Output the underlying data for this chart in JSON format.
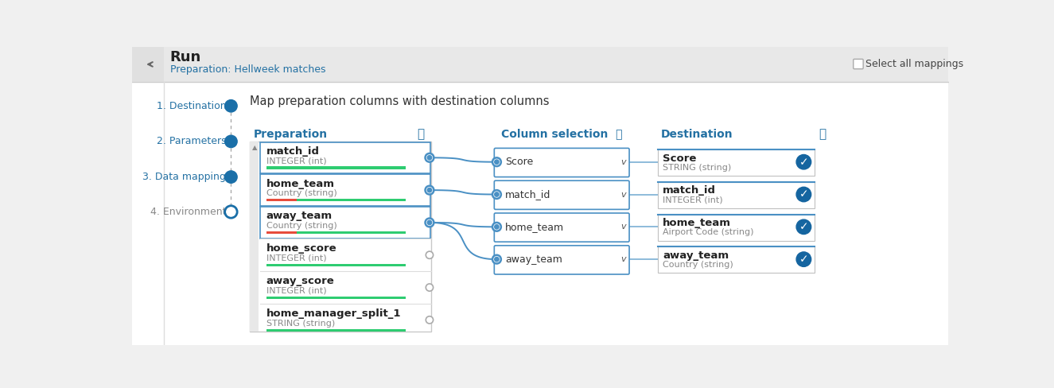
{
  "bg_color": "#f0f0f0",
  "white": "#ffffff",
  "blue_btn": "#1a6fa8",
  "blue_btn2": "#1565a0",
  "green": "#2ecc71",
  "red_bar": "#e74c3c",
  "text_dark": "#333333",
  "text_blue": "#2471a3",
  "text_gray": "#888888",
  "border_blue": "#4a90c4",
  "border_gray": "#cccccc",
  "header_bg": "#e8e8e8",
  "panel_bg": "#f7f7f7",
  "header_title": "Run",
  "header_subtitle": "Preparation: Hellweek matches",
  "select_all_label": "Select all mappings",
  "step_title": "Map preparation columns with destination columns",
  "steps": [
    {
      "num": "1.",
      "label": "Destination",
      "filled": true,
      "active": false
    },
    {
      "num": "2.",
      "label": "Parameters",
      "filled": true,
      "active": false
    },
    {
      "num": "3.",
      "label": "Data mapping",
      "filled": true,
      "active": true
    },
    {
      "num": "4.",
      "label": "Environment",
      "filled": false,
      "active": false
    }
  ],
  "prep_header": "Preparation",
  "col_sel_header": "Column selection",
  "dest_header": "Destination",
  "prep_items": [
    {
      "name": "match_id",
      "type": "INTEGER (int)",
      "bar_red": false,
      "connected": true,
      "highlighted": true
    },
    {
      "name": "home_team",
      "type": "Country (string)",
      "bar_red": true,
      "connected": true,
      "highlighted": true
    },
    {
      "name": "away_team",
      "type": "Country (string)",
      "bar_red": true,
      "connected": true,
      "highlighted": true
    },
    {
      "name": "home_score",
      "type": "INTEGER (int)",
      "bar_red": false,
      "connected": false,
      "highlighted": false
    },
    {
      "name": "away_score",
      "type": "INTEGER (int)",
      "bar_red": false,
      "connected": false,
      "highlighted": false
    },
    {
      "name": "home_manager_split_1",
      "type": "STRING (string)",
      "bar_red": false,
      "connected": false,
      "highlighted": false
    }
  ],
  "col_sel_items": [
    {
      "value": "Score"
    },
    {
      "value": "match_id"
    },
    {
      "value": "home_team"
    },
    {
      "value": "away_team"
    }
  ],
  "dest_items": [
    {
      "name": "Score",
      "type": "STRING (string)"
    },
    {
      "name": "match_id",
      "type": "INTEGER (int)"
    },
    {
      "name": "home_team",
      "type": "Airport Code (string)"
    },
    {
      "name": "away_team",
      "type": "Country (string)"
    }
  ],
  "connections": [
    {
      "from_idx": 0,
      "to_idx": 0
    },
    {
      "from_idx": 1,
      "to_idx": 1
    },
    {
      "from_idx": 2,
      "to_idx": 2
    },
    {
      "from_idx": 2,
      "to_idx": 3
    }
  ]
}
